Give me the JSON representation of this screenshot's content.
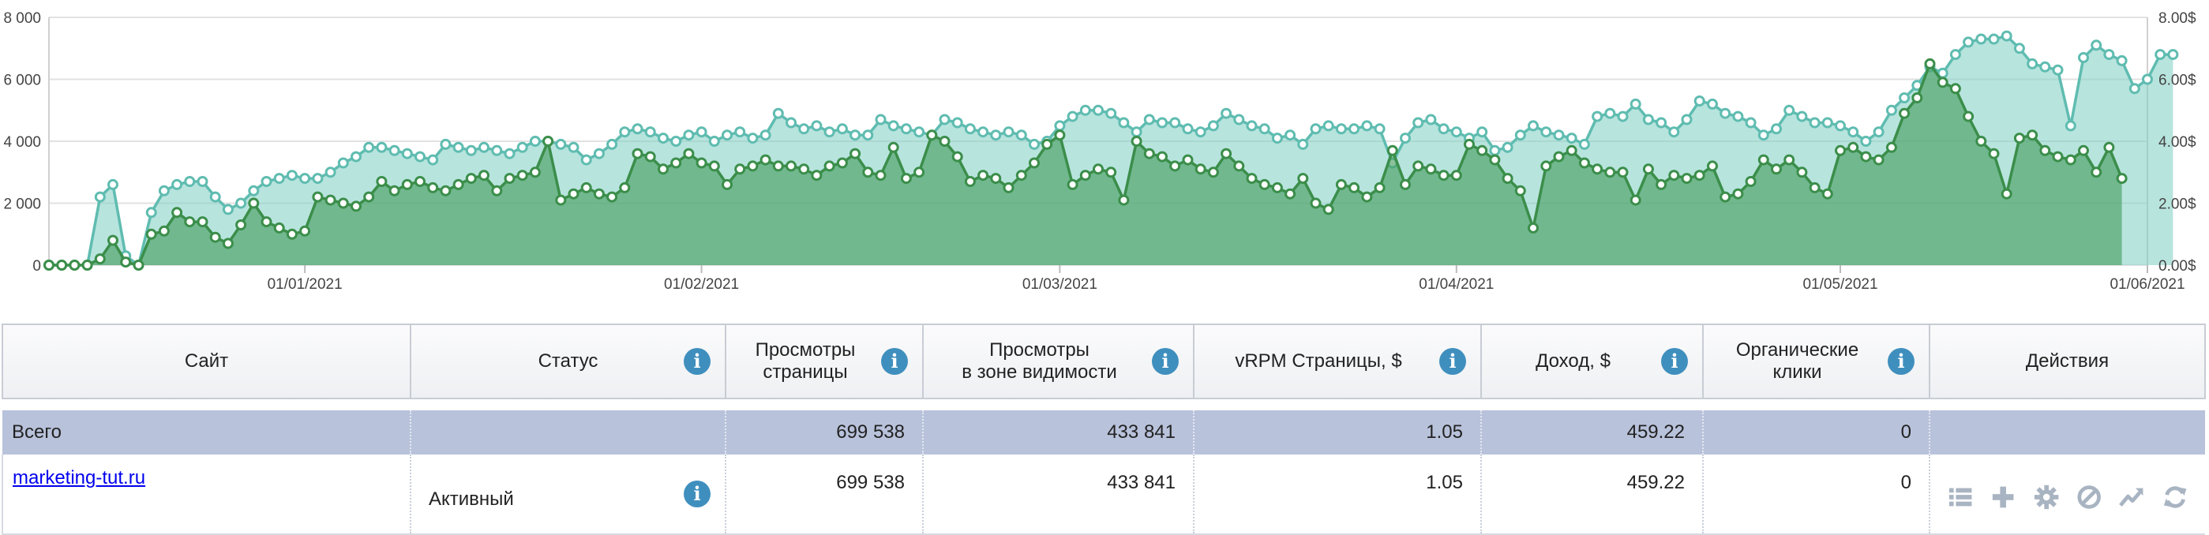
{
  "chart_data": {
    "type": "area",
    "x_labels": [
      "01/01/2021",
      "01/02/2021",
      "01/03/2021",
      "01/04/2021",
      "01/05/2021",
      "01/06/2021"
    ],
    "y_left": {
      "ticks": [
        "0",
        "2 000",
        "4 000",
        "6 000",
        "8 000"
      ],
      "range": [
        0,
        8000
      ]
    },
    "y_right": {
      "ticks": [
        "0.00$",
        "2.00$",
        "4.00$",
        "6.00$",
        "8.00$"
      ],
      "range": [
        0,
        8
      ]
    },
    "x_range": [
      0,
      164
    ],
    "x_label_positions": [
      20,
      51,
      79,
      110,
      140,
      164
    ],
    "series": [
      {
        "role": "page_views_axis_left",
        "color": "#5fbcb0",
        "values": [
          0,
          0,
          0,
          0,
          2200,
          2600,
          300,
          0,
          1700,
          2400,
          2600,
          2700,
          2700,
          2200,
          1800,
          2000,
          2400,
          2700,
          2800,
          2900,
          2800,
          2800,
          3000,
          3300,
          3500,
          3800,
          3800,
          3700,
          3600,
          3500,
          3400,
          3900,
          3800,
          3700,
          3800,
          3700,
          3600,
          3800,
          4000,
          4000,
          3900,
          3800,
          3400,
          3600,
          3900,
          4300,
          4400,
          4300,
          4100,
          4000,
          4200,
          4300,
          4000,
          4200,
          4300,
          4100,
          4200,
          4900,
          4600,
          4400,
          4500,
          4300,
          4400,
          4200,
          4200,
          4700,
          4500,
          4400,
          4300,
          4200,
          4700,
          4600,
          4400,
          4300,
          4200,
          4300,
          4200,
          3900,
          4000,
          4500,
          4800,
          5000,
          5000,
          4900,
          4600,
          4300,
          4700,
          4600,
          4600,
          4400,
          4300,
          4500,
          4900,
          4700,
          4500,
          4400,
          4100,
          4200,
          3900,
          4400,
          4500,
          4400,
          4400,
          4500,
          4400,
          3300,
          4100,
          4600,
          4700,
          4400,
          4300,
          4100,
          4300,
          3700,
          3800,
          4200,
          4500,
          4300,
          4200,
          4100,
          3900,
          4800,
          4900,
          4800,
          5200,
          4700,
          4600,
          4300,
          4700,
          5300,
          5200,
          4900,
          4800,
          4600,
          4200,
          4400,
          5000,
          4800,
          4600,
          4600,
          4500,
          4300,
          4000,
          4300,
          5000,
          5400,
          5800,
          6400,
          6200,
          6800,
          7200,
          7300,
          7300,
          7400,
          7000,
          6500,
          6400,
          6300,
          4500,
          6700,
          7100,
          6800,
          6600,
          5700,
          6000,
          6800,
          6800
        ],
        "dots": true
      },
      {
        "role": "revenue_axis_right",
        "color": "#3b8e4a",
        "values": [
          0,
          0,
          0,
          0,
          200,
          800,
          100,
          0,
          1000,
          1100,
          1700,
          1400,
          1400,
          900,
          700,
          1300,
          2000,
          1400,
          1200,
          1000,
          1100,
          2200,
          2100,
          2000,
          1900,
          2200,
          2700,
          2400,
          2600,
          2700,
          2500,
          2400,
          2600,
          2800,
          2900,
          2400,
          2800,
          2900,
          3000,
          4000,
          2100,
          2300,
          2500,
          2300,
          2200,
          2500,
          3600,
          3500,
          3100,
          3300,
          3600,
          3300,
          3200,
          2600,
          3100,
          3200,
          3400,
          3200,
          3200,
          3100,
          2900,
          3200,
          3300,
          3600,
          3000,
          2900,
          3800,
          2800,
          3000,
          4200,
          4000,
          3500,
          2700,
          2900,
          2800,
          2500,
          2900,
          3300,
          3900,
          4200,
          2600,
          2900,
          3100,
          3000,
          2100,
          4000,
          3600,
          3500,
          3200,
          3400,
          3100,
          3000,
          3600,
          3200,
          2800,
          2600,
          2500,
          2300,
          2800,
          2000,
          1800,
          2600,
          2500,
          2200,
          2500,
          3700,
          2600,
          3200,
          3100,
          2900,
          2900,
          3900,
          3700,
          3400,
          2800,
          2400,
          1200,
          3200,
          3500,
          3700,
          3300,
          3100,
          3000,
          3000,
          2100,
          3100,
          2600,
          2900,
          2800,
          2900,
          3200,
          2200,
          2300,
          2700,
          3400,
          3100,
          3400,
          3000,
          2500,
          2300,
          3700,
          3800,
          3500,
          3400,
          3800,
          4900,
          5400,
          6500,
          5900,
          5700,
          4800,
          4000,
          3600,
          2300,
          4100,
          4200,
          3700,
          3500,
          3400,
          3700,
          3000,
          3800,
          2800
        ],
        "dots": true
      }
    ]
  },
  "table": {
    "headers": {
      "site": "Сайт",
      "status": "Статус",
      "views_1": "Просмотры",
      "views_2": "страницы",
      "viewable_1": "Просмотры",
      "viewable_2": "в зоне видимости",
      "vrpm": "vRPM Страницы, $",
      "income": "Доход, $",
      "organic_1": "Органические",
      "organic_2": "клики",
      "actions": "Действия"
    },
    "info_glyph": "i",
    "total": {
      "label": "Всего",
      "views": "699 538",
      "viewable": "433 841",
      "vrpm": "1.05",
      "income": "459.22",
      "organic": "0"
    },
    "rows": [
      {
        "site": "marketing-tut.ru",
        "status": "Активный",
        "views": "699 538",
        "viewable": "433 841",
        "vrpm": "1.05",
        "income": "459.22",
        "organic": "0",
        "actions": [
          "list-icon",
          "plus-icon",
          "gear-icon",
          "block-icon",
          "trend-icon",
          "refresh-icon"
        ]
      }
    ]
  },
  "colors": {
    "accent_info": "#3f8fbe",
    "total_row": "#b8c2db",
    "action_icons": "#a9b4c2"
  }
}
